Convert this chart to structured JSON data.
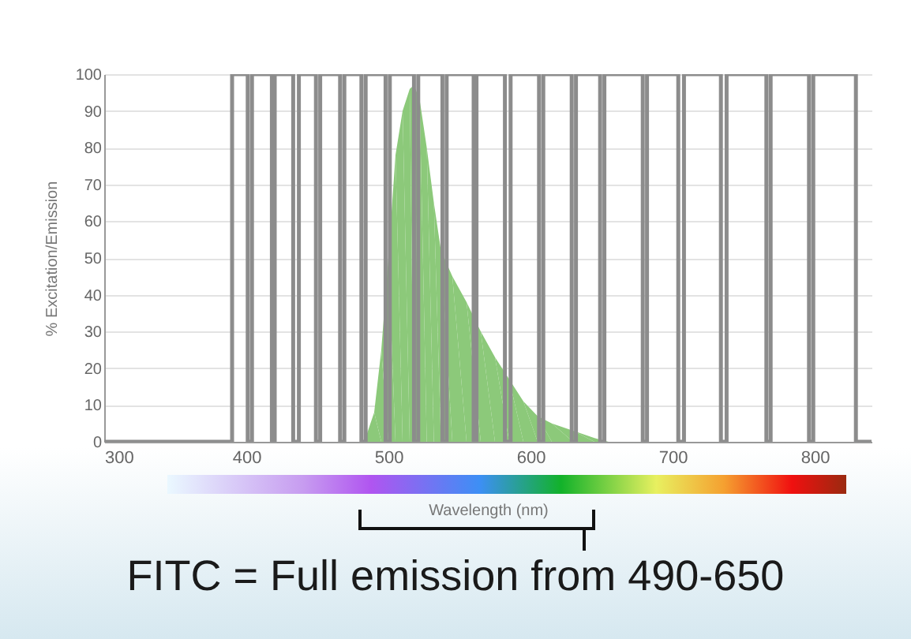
{
  "chart_data": {
    "type": "area",
    "xlabel": "Wavelength (nm)",
    "ylabel": "% Excitation/Emission",
    "xlim": [
      300,
      840
    ],
    "ylim": [
      0,
      100
    ],
    "xticks": [
      300,
      400,
      500,
      600,
      700,
      800
    ],
    "yticks": [
      0,
      10,
      20,
      30,
      40,
      50,
      60,
      70,
      80,
      90,
      100
    ],
    "grid": "y",
    "annotations": [
      "FITC = Full emission from 490-650"
    ],
    "series": [
      {
        "type": "line",
        "color": "#8c8c8c",
        "x": [
          300,
          390,
          390,
          401,
          401,
          404,
          404,
          418,
          418,
          420,
          420,
          433,
          433,
          437,
          437,
          449,
          449,
          452,
          452,
          466,
          466,
          469,
          469,
          481,
          481,
          484,
          484,
          498,
          498,
          501,
          501,
          518,
          518,
          521,
          521,
          538,
          538,
          541,
          541,
          560,
          560,
          562,
          562,
          582,
          582,
          586,
          586,
          606,
          606,
          609,
          609,
          629,
          629,
          632,
          632,
          649,
          649,
          652,
          652,
          679,
          679,
          682,
          682,
          704,
          704,
          708,
          708,
          734,
          734,
          738,
          738,
          766,
          766,
          769,
          769,
          796,
          796,
          799,
          799,
          829,
          829,
          840
        ],
        "values": [
          0,
          0,
          100,
          100,
          0,
          0,
          100,
          100,
          0,
          0,
          100,
          100,
          0,
          0,
          100,
          100,
          0,
          0,
          100,
          100,
          0,
          0,
          100,
          100,
          0,
          0,
          100,
          100,
          0,
          0,
          100,
          100,
          0,
          0,
          100,
          100,
          0,
          0,
          100,
          100,
          0,
          0,
          100,
          100,
          0,
          0,
          100,
          100,
          0,
          0,
          100,
          100,
          0,
          0,
          100,
          100,
          0,
          0,
          100,
          100,
          0,
          0,
          100,
          100,
          0,
          0,
          100,
          100,
          0,
          0,
          100,
          100,
          0,
          0,
          100,
          100,
          0,
          0,
          100,
          100,
          0,
          0
        ]
      },
      {
        "type": "area",
        "color": "#8cc97a",
        "x": [
          483,
          490,
          495,
          500,
          505,
          510,
          515,
          518,
          522,
          527,
          532,
          537,
          545,
          555,
          565,
          575,
          585,
          595,
          605,
          615,
          630,
          645,
          655
        ],
        "values": [
          0,
          8,
          25,
          50,
          78,
          90,
          96,
          97,
          93,
          80,
          65,
          52,
          45,
          38,
          30,
          23,
          17,
          11,
          7,
          5,
          3,
          1,
          0
        ]
      }
    ]
  }
}
